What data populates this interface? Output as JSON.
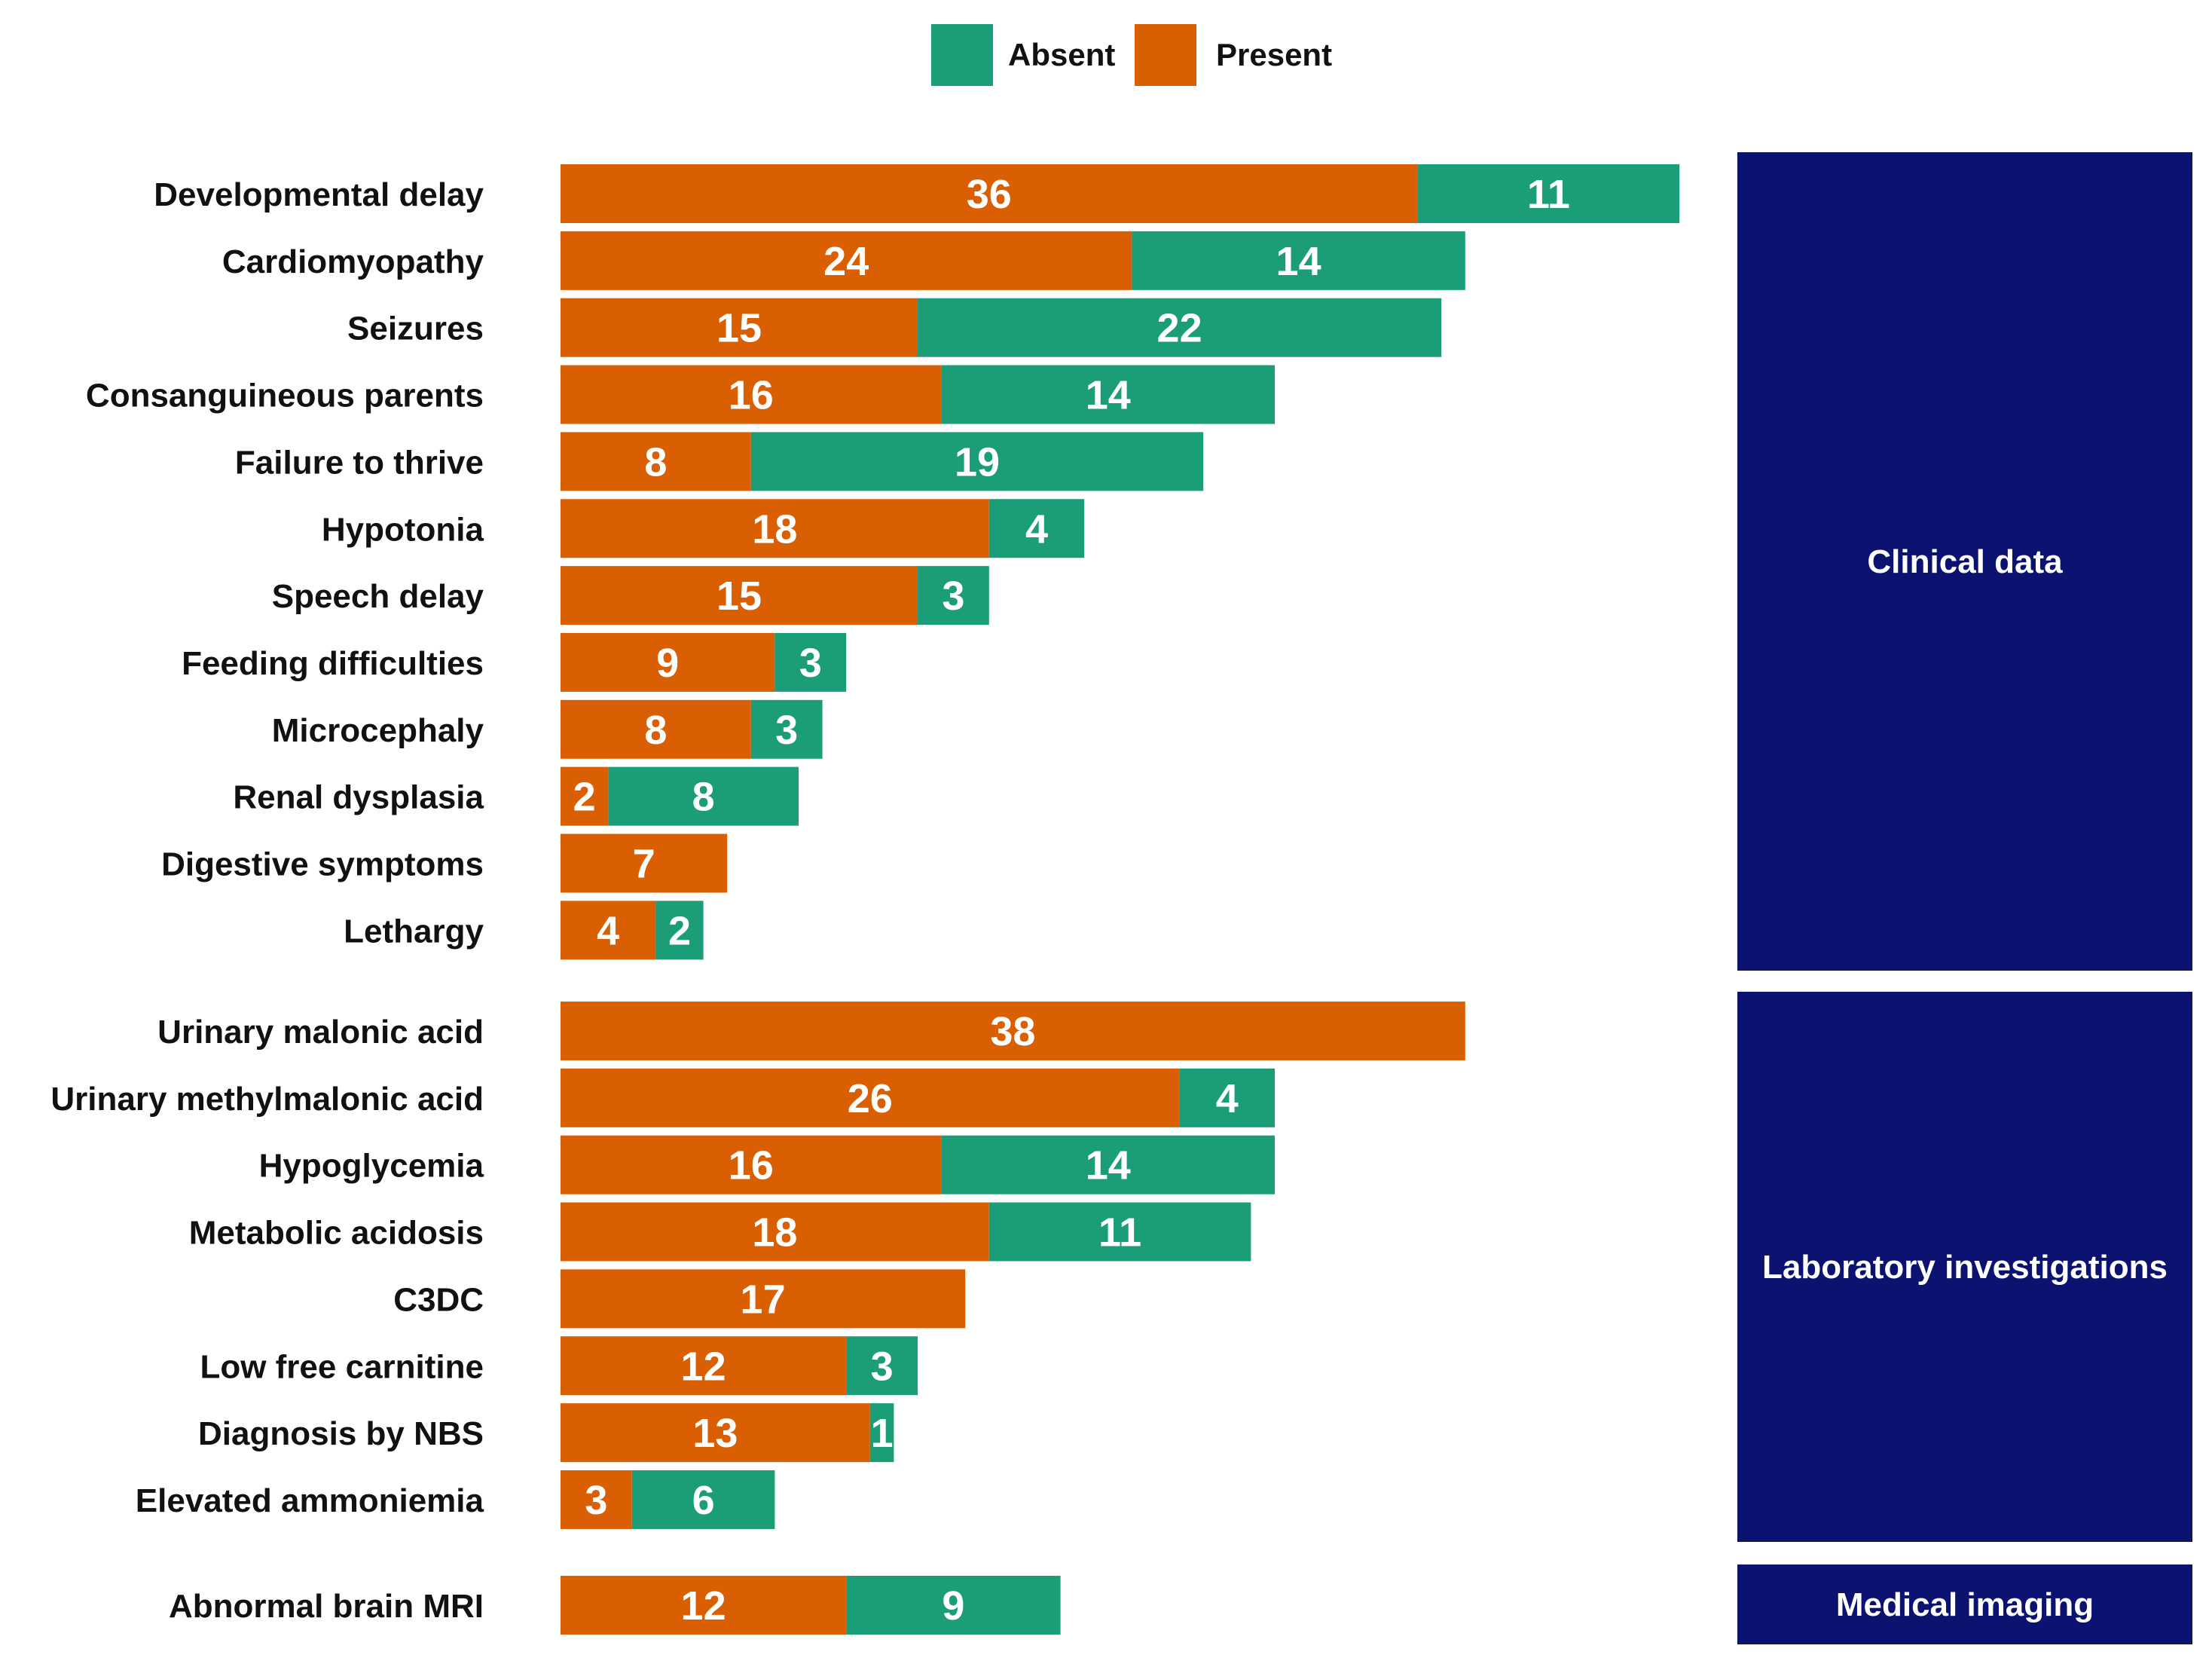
{
  "chart_data": {
    "type": "bar",
    "orientation": "horizontal",
    "stacked": true,
    "legend": {
      "position": "top",
      "entries": [
        {
          "name": "Absent",
          "color": "#1b9e77"
        },
        {
          "name": "Present",
          "color": "#d95f02"
        }
      ]
    },
    "series": [
      {
        "name": "Present",
        "color": "#d95f02"
      },
      {
        "name": "Absent",
        "color": "#1b9e77"
      }
    ],
    "groups": [
      {
        "name": "Clinical data",
        "rows": [
          {
            "label": "Developmental delay",
            "present": 36,
            "absent": 11
          },
          {
            "label": "Cardiomyopathy",
            "present": 24,
            "absent": 14
          },
          {
            "label": "Seizures",
            "present": 15,
            "absent": 22
          },
          {
            "label": "Consanguineous parents",
            "present": 16,
            "absent": 14
          },
          {
            "label": "Failure to thrive",
            "present": 8,
            "absent": 19
          },
          {
            "label": "Hypotonia",
            "present": 18,
            "absent": 4
          },
          {
            "label": "Speech delay",
            "present": 15,
            "absent": 3
          },
          {
            "label": "Feeding difficulties",
            "present": 9,
            "absent": 3
          },
          {
            "label": "Microcephaly",
            "present": 8,
            "absent": 3
          },
          {
            "label": "Renal dysplasia",
            "present": 2,
            "absent": 8
          },
          {
            "label": "Digestive symptoms",
            "present": 7,
            "absent": 0
          },
          {
            "label": "Lethargy",
            "present": 4,
            "absent": 2
          }
        ]
      },
      {
        "name": "Laboratory investigations",
        "rows": [
          {
            "label": "Urinary malonic acid",
            "present": 38,
            "absent": 0
          },
          {
            "label": "Urinary methylmalonic acid",
            "present": 26,
            "absent": 4
          },
          {
            "label": "Hypoglycemia",
            "present": 16,
            "absent": 14
          },
          {
            "label": "Metabolic acidosis",
            "present": 18,
            "absent": 11
          },
          {
            "label": "C3DC",
            "present": 17,
            "absent": 0
          },
          {
            "label": "Low free carnitine",
            "present": 12,
            "absent": 3
          },
          {
            "label": "Diagnosis by NBS",
            "present": 13,
            "absent": 1
          },
          {
            "label": "Elevated ammoniemia",
            "present": 3,
            "absent": 6
          }
        ]
      },
      {
        "name": "Medical imaging",
        "rows": [
          {
            "label": "Abnormal brain MRI",
            "present": 12,
            "absent": 9
          }
        ]
      }
    ],
    "group_color": "#0b1270",
    "xlim": [
      0,
      47
    ],
    "grid": false,
    "title": "",
    "xlabel": "",
    "ylabel": ""
  }
}
